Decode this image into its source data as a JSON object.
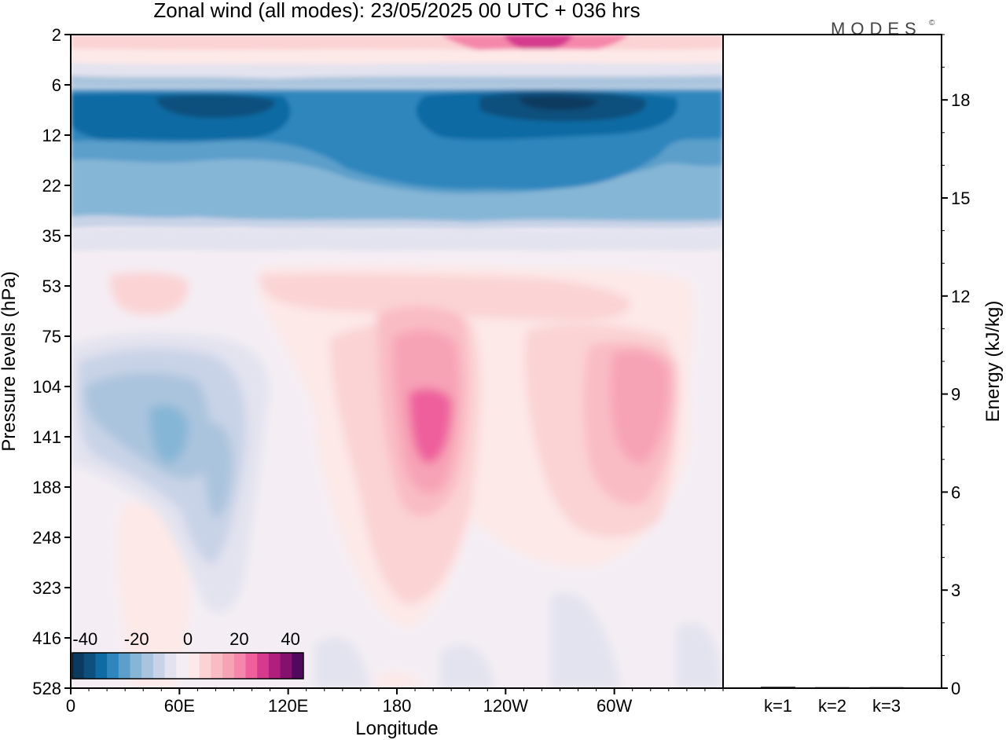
{
  "title": "Zonal wind (all modes):  23/05/2025  00 UTC  + 036 hrs",
  "brand": "MODES",
  "brand_mark": "©",
  "colors": {
    "negative": [
      "#0a3b5e",
      "#0d4f7d",
      "#0f6ba3",
      "#2f86bd",
      "#5b9fca",
      "#86b6d6",
      "#aac4dd",
      "#c9d3e7",
      "#e3e3ef"
    ],
    "neutral": "#f4eef4",
    "positive": [
      "#fde9e8",
      "#fbd3d4",
      "#f9bcc4",
      "#f7a3b6",
      "#f487aa",
      "#ee5f9c",
      "#d63a8d",
      "#b01f7c",
      "#85106d",
      "#4f0a5e"
    ]
  },
  "chart_data": [
    {
      "type": "heatmap",
      "name": "zonal-wind-cross-section",
      "xlabel": "Longitude",
      "ylabel": "Pressure levels (hPa)",
      "x_ticks": [
        "0",
        "60E",
        "120E",
        "180",
        "120W",
        "60W"
      ],
      "x_tick_degrees": [
        0,
        60,
        120,
        180,
        240,
        300
      ],
      "xlim": [
        0,
        360
      ],
      "y_ticks": [
        "2",
        "6",
        "12",
        "22",
        "35",
        "53",
        "75",
        "104",
        "141",
        "188",
        "248",
        "323",
        "416",
        "528"
      ],
      "colorbar": {
        "range": [
          -45,
          45
        ],
        "step": 5,
        "tick_labels": [
          "-40",
          "-20",
          "0",
          "20",
          "40"
        ],
        "tick_values": [
          -40,
          -20,
          0,
          20,
          40
        ]
      },
      "features": [
        {
          "name": "upper-easterly-core",
          "levels": "6-22 hPa",
          "longitudes": "0-360",
          "value_ms": -35
        },
        {
          "name": "upper-westerly-band",
          "levels": "2-4 hPa",
          "longitudes": "200-260",
          "value_ms": 25
        },
        {
          "name": "easterly-minimum-60E",
          "levels": "104-188 hPa",
          "longitudes": "10-100",
          "value_ms": -20
        },
        {
          "name": "westerly-maximum-180",
          "levels": "75-188 hPa",
          "longitudes": "180-230",
          "value_ms": 25
        },
        {
          "name": "westerly-maximum-60W",
          "levels": "104-188 hPa",
          "longitudes": "290-330",
          "value_ms": 20
        }
      ]
    },
    {
      "type": "bar",
      "name": "energy-by-wavenumber",
      "categories": [
        "k=1",
        "k=2",
        "k=3"
      ],
      "values": [
        0.04,
        0.03,
        0.03
      ],
      "ylabel": "Energy (kJ/kg)",
      "ylim": [
        0,
        20
      ],
      "y_ticks": [
        "0",
        "3",
        "6",
        "9",
        "12",
        "15",
        "18"
      ],
      "y_tick_values": [
        0,
        3,
        6,
        9,
        12,
        15,
        18
      ]
    }
  ]
}
